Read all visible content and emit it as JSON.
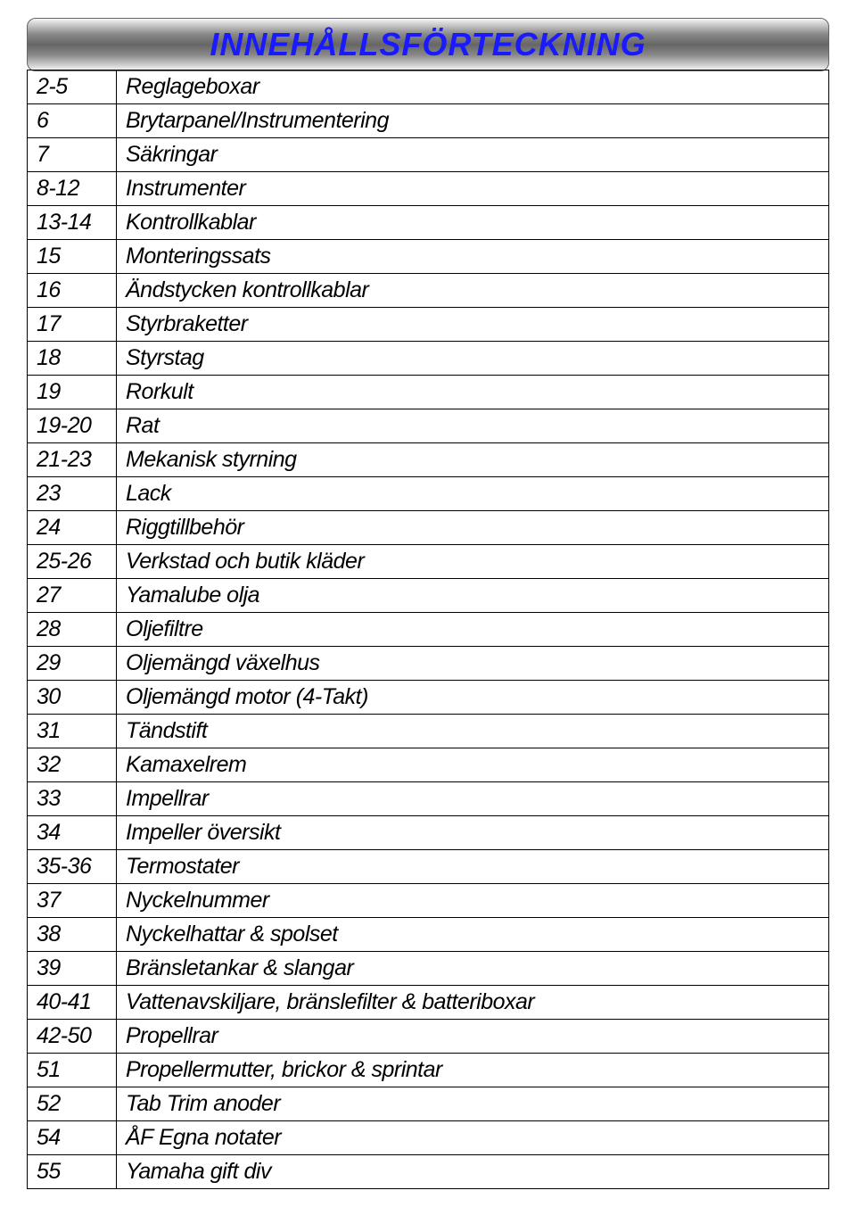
{
  "header": {
    "title": "INNEHÅLLSFÖRTECKNING",
    "title_color": "#1a1aff",
    "title_fontsize": 36,
    "gradient_colors": [
      "#f5f5f5",
      "#888888",
      "#666666",
      "#888888",
      "#f5f5f5"
    ]
  },
  "toc": {
    "font_style": "italic",
    "font_size": 25,
    "border_color": "#000000",
    "page_col_width": 100,
    "rows": [
      {
        "page": "2-5",
        "label": "Reglageboxar"
      },
      {
        "page": "6",
        "label": "Brytarpanel/Instrumentering"
      },
      {
        "page": "7",
        "label": "Säkringar"
      },
      {
        "page": "8-12",
        "label": "Instrumenter"
      },
      {
        "page": "13-14",
        "label": "Kontrollkablar"
      },
      {
        "page": "15",
        "label": "Monteringssats"
      },
      {
        "page": "16",
        "label": "Ändstycken kontrollkablar"
      },
      {
        "page": "17",
        "label": "Styrbraketter"
      },
      {
        "page": "18",
        "label": "Styrstag"
      },
      {
        "page": "19",
        "label": "Rorkult"
      },
      {
        "page": "19-20",
        "label": "Rat"
      },
      {
        "page": "21-23",
        "label": "Mekanisk styrning"
      },
      {
        "page": "23",
        "label": "Lack"
      },
      {
        "page": "24",
        "label": "Riggtillbehör"
      },
      {
        "page": "25-26",
        "label": "Verkstad och butik kläder"
      },
      {
        "page": "27",
        "label": "Yamalube olja"
      },
      {
        "page": "28",
        "label": "Oljefiltre"
      },
      {
        "page": "29",
        "label": "Oljemängd växelhus"
      },
      {
        "page": "30",
        "label": "Oljemängd motor (4-Takt)"
      },
      {
        "page": "31",
        "label": "Tändstift"
      },
      {
        "page": "32",
        "label": "Kamaxelrem"
      },
      {
        "page": "33",
        "label": "Impellrar"
      },
      {
        "page": "34",
        "label": "Impeller översikt"
      },
      {
        "page": "35-36",
        "label": "Termostater"
      },
      {
        "page": "37",
        "label": "Nyckelnummer"
      },
      {
        "page": "38",
        "label": "Nyckelhattar & spolset"
      },
      {
        "page": "39",
        "label": "Bränsletankar & slangar"
      },
      {
        "page": "40-41",
        "label": "Vattenavskiljare, bränslefilter & batteriboxar"
      },
      {
        "page": "42-50",
        "label": "Propellrar"
      },
      {
        "page": "51",
        "label": "Propellermutter, brickor &  sprintar"
      },
      {
        "page": "52",
        "label": "Tab Trim anoder"
      },
      {
        "page": "54",
        "label": "ÅF Egna notater"
      },
      {
        "page": "55",
        "label": "Yamaha gift div"
      }
    ]
  }
}
